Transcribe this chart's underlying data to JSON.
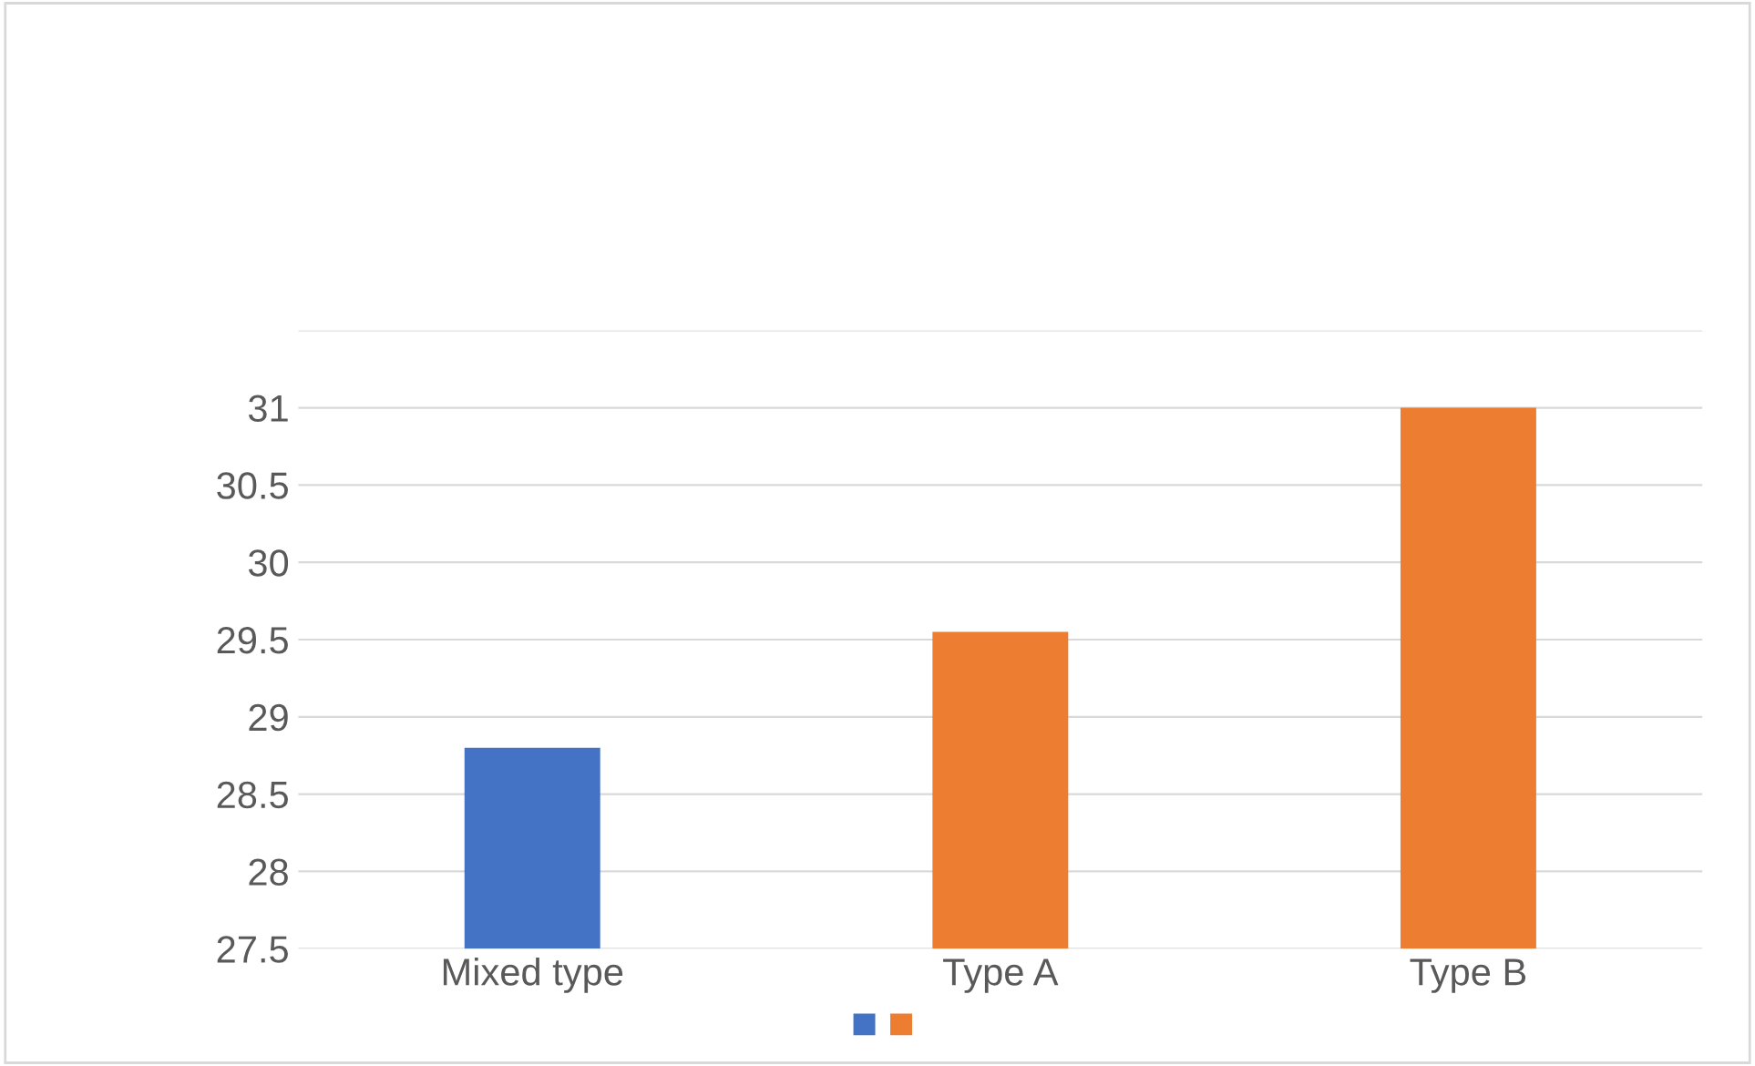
{
  "chart_data": {
    "type": "bar",
    "categories": [
      "Mixed type",
      "Type A",
      "Type B"
    ],
    "values": [
      28.8,
      29.55,
      31.0
    ],
    "colors": [
      "#4472c4",
      "#ed7d31",
      "#ed7d31"
    ],
    "ylim": [
      27.5,
      31.5
    ],
    "yticks": [
      27.5,
      28,
      28.5,
      29,
      29.5,
      30,
      30.5,
      31,
      {
        "value": 31.5,
        "label": null
      }
    ],
    "grid": "y"
  }
}
